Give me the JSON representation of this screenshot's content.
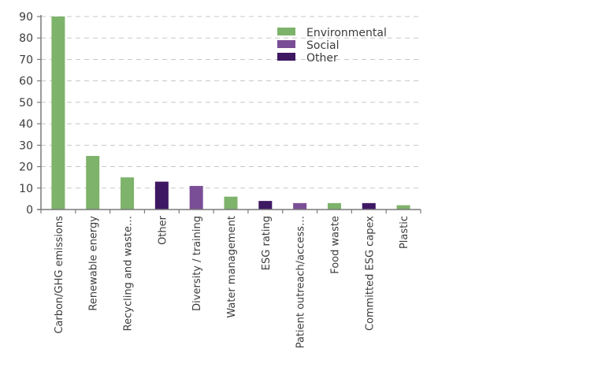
{
  "chart_data": {
    "type": "bar",
    "title": "",
    "xlabel": "",
    "ylabel": "",
    "ylim": [
      0,
      90
    ],
    "yticks": [
      0,
      10,
      20,
      30,
      40,
      50,
      60,
      70,
      80,
      90
    ],
    "grid": "horizontal-dashed",
    "legend_position": "top-right",
    "categories": [
      "Carbon/GHG emissions",
      "Renewable energy",
      "Recycling and waste…",
      "Other",
      "Diversity / training",
      "Water management",
      "ESG rating",
      "Patient outreach/access…",
      "Food waste",
      "Committed ESG capex",
      "Plastic"
    ],
    "values": [
      90,
      25,
      15,
      13,
      11,
      6,
      4,
      3,
      3,
      3,
      2
    ],
    "groups": [
      "Environmental",
      "Environmental",
      "Environmental",
      "Other",
      "Social",
      "Environmental",
      "Other",
      "Social",
      "Environmental",
      "Other",
      "Environmental"
    ],
    "legend": [
      {
        "name": "Environmental",
        "color": "#7db36a"
      },
      {
        "name": "Social",
        "color": "#7a4e96"
      },
      {
        "name": "Other",
        "color": "#3f1863"
      }
    ],
    "colors": {
      "Environmental": "#7db36a",
      "Social": "#7a4e96",
      "Other": "#3f1863",
      "axis": "#7a7a7a",
      "grid": "#c8c8c8"
    }
  }
}
